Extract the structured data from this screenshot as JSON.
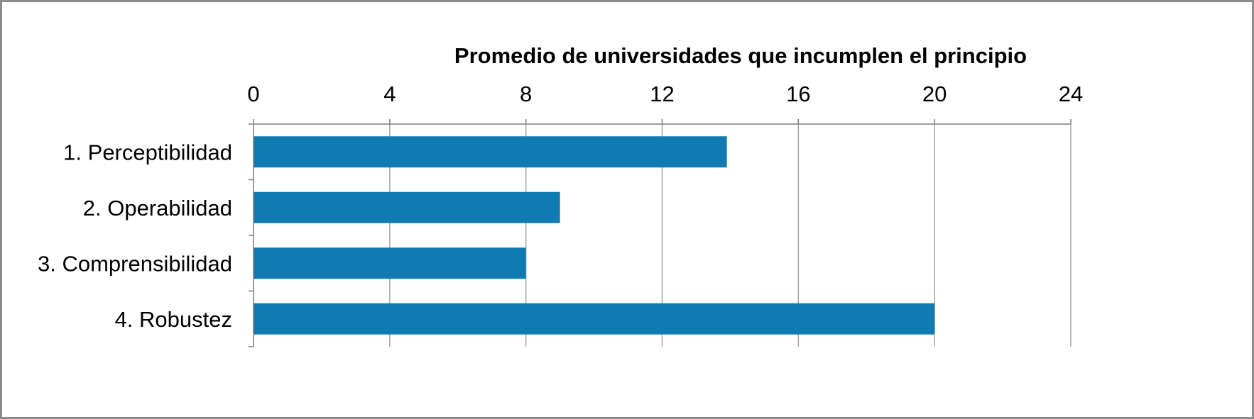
{
  "chart_data": {
    "type": "bar",
    "orientation": "horizontal",
    "xlabel": "Promedio de universidades que incumplen el principio",
    "xaxis_position": "top",
    "xlim": [
      0,
      24
    ],
    "xticks": [
      0,
      4,
      8,
      12,
      16,
      20,
      24
    ],
    "categories": [
      "1. Perceptibilidad",
      "2. Operabilidad",
      "3. Comprensibilidad",
      "4. Robustez"
    ],
    "values": [
      13.9,
      9.0,
      8.0,
      20.0
    ],
    "grid": true,
    "bar_color": "#0f7bb0",
    "grid_color": "#a6a6a6"
  }
}
